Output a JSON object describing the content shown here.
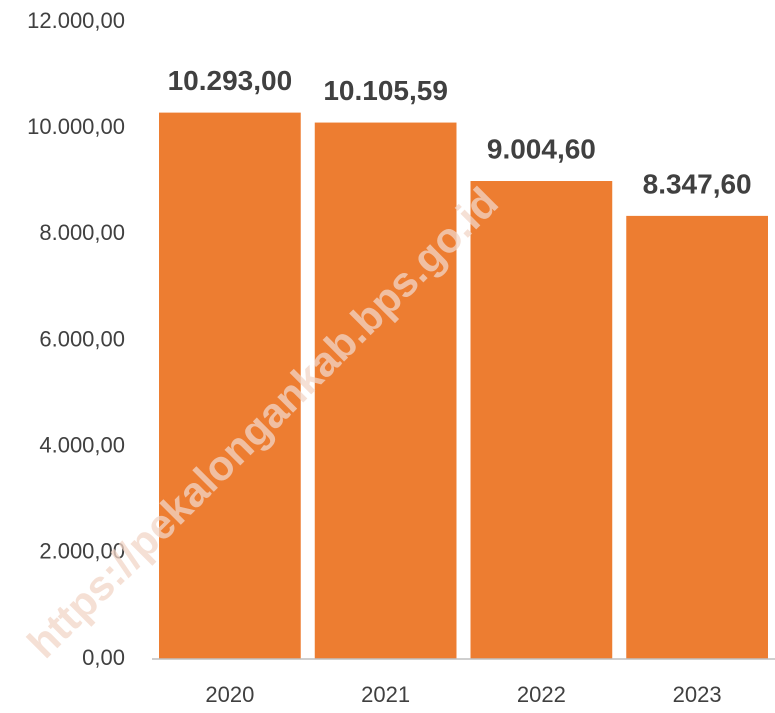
{
  "chart_data": {
    "type": "bar",
    "categories": [
      "2020",
      "2021",
      "2022",
      "2023"
    ],
    "values": [
      10293.0,
      10105.59,
      9004.6,
      8347.6
    ],
    "value_labels": [
      "10.293,00",
      "10.105,59",
      "9.004,60",
      "8.347,60"
    ],
    "color": "#ed7d31",
    "ylim": [
      0,
      12000
    ],
    "yticks": [
      {
        "value": 0,
        "label": "0,00"
      },
      {
        "value": 2000,
        "label": "2.000,00"
      },
      {
        "value": 4000,
        "label": "4.000,00"
      },
      {
        "value": 6000,
        "label": "6.000,00"
      },
      {
        "value": 8000,
        "label": "8.000,00"
      },
      {
        "value": 10000,
        "label": "10.000,00"
      },
      {
        "value": 12000,
        "label": "12.000,00"
      }
    ],
    "grid": false,
    "watermark": "https://pekalongankab.bps.go.id"
  }
}
